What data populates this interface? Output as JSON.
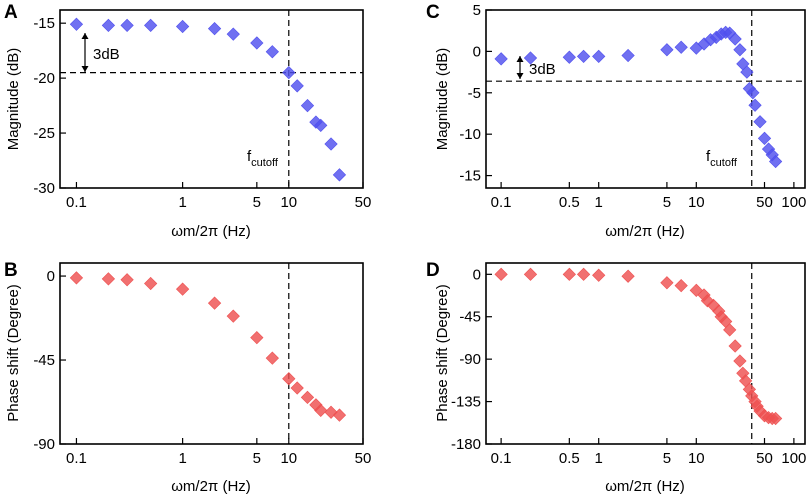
{
  "chart_data": [
    {
      "panel": "A",
      "type": "scatter",
      "xscale": "log",
      "xlim": [
        0.07,
        50
      ],
      "ylim": [
        -30,
        -13.8
      ],
      "xticks": [
        0.1,
        1,
        5,
        10,
        50
      ],
      "xtick_labels": [
        "0.1",
        "1",
        "5",
        "10",
        "50"
      ],
      "yticks": [
        -15,
        -20,
        -25,
        -30
      ],
      "ytick_labels": [
        "-15",
        "-20",
        "-25",
        "-30"
      ],
      "xlabel": "ωm/2π (Hz)",
      "ylabel": "Magnitude  (dB)",
      "color": "#5050ee",
      "x": [
        0.1,
        0.2,
        0.3,
        0.5,
        1,
        2,
        3,
        5,
        7,
        10,
        12,
        15,
        18,
        20,
        25,
        30
      ],
      "y": [
        -15.1,
        -15.2,
        -15.2,
        -15.2,
        -15.3,
        -15.5,
        -16.0,
        -16.8,
        -17.6,
        -19.5,
        -20.7,
        -22.5,
        -24.0,
        -24.3,
        -26.0,
        -28.8
      ],
      "hline": -19.5,
      "vline": 10,
      "annotations": {
        "drop": "3dB",
        "cutoff_main": "f",
        "cutoff_sub": "cutoff"
      }
    },
    {
      "panel": "B",
      "type": "scatter",
      "xscale": "log",
      "xlim": [
        0.07,
        50
      ],
      "ylim": [
        -90,
        7
      ],
      "xticks": [
        0.1,
        1,
        5,
        10,
        50
      ],
      "xtick_labels": [
        "0.1",
        "1",
        "5",
        "10",
        "50"
      ],
      "yticks": [
        0,
        -45,
        -90
      ],
      "ytick_labels": [
        "0",
        "-45",
        "-90"
      ],
      "xlabel": "ωm/2π (Hz)",
      "ylabel": "Phase shift  (Degree)",
      "color": "#ee5050",
      "x": [
        0.1,
        0.2,
        0.3,
        0.5,
        1,
        2,
        3,
        5,
        7,
        10,
        12,
        15,
        18,
        20,
        25,
        30
      ],
      "y": [
        -1,
        -1.5,
        -2,
        -4,
        -7,
        -14.5,
        -21.5,
        -33,
        -44,
        -55,
        -60,
        -65,
        -69,
        -72,
        -73,
        -74.5
      ],
      "vline": 10
    },
    {
      "panel": "C",
      "type": "scatter",
      "xscale": "log",
      "xlim": [
        0.07,
        130
      ],
      "ylim": [
        -16.5,
        5
      ],
      "xticks": [
        0.1,
        0.5,
        1,
        5,
        10,
        50,
        100
      ],
      "xtick_labels": [
        "0.1",
        "0.5",
        "1",
        "5",
        "10",
        "50",
        "100"
      ],
      "yticks": [
        5,
        0,
        -5,
        -10,
        -15
      ],
      "ytick_labels": [
        "5",
        "0",
        "-5",
        "-10",
        "-15"
      ],
      "xlabel": "ωm/2π (Hz)",
      "ylabel": "Magnitude  (dB)",
      "color": "#5050ee",
      "x": [
        0.1,
        0.2,
        0.5,
        0.7,
        1,
        2,
        5,
        7,
        10,
        12,
        14,
        16,
        18,
        20,
        22,
        25,
        28,
        30,
        33,
        35,
        38,
        40,
        45,
        50,
        55,
        60,
        65
      ],
      "y": [
        -0.9,
        -0.8,
        -0.7,
        -0.6,
        -0.6,
        -0.5,
        0.2,
        0.5,
        0.4,
        0.9,
        1.4,
        1.7,
        2.1,
        2.3,
        2.2,
        1.5,
        0.2,
        -1.5,
        -2.5,
        -4.5,
        -5.0,
        -6.5,
        -8.5,
        -10.5,
        -11.8,
        -12.5,
        -13.3
      ],
      "hline": -3.6,
      "vline": 37,
      "annotations": {
        "drop": "3dB",
        "cutoff_main": "f",
        "cutoff_sub": "cutoff"
      }
    },
    {
      "panel": "D",
      "type": "scatter",
      "xscale": "log",
      "xlim": [
        0.07,
        130
      ],
      "ylim": [
        -180,
        12
      ],
      "xticks": [
        0.1,
        0.5,
        1,
        5,
        10,
        50,
        100
      ],
      "xtick_labels": [
        "0.1",
        "0.5",
        "1",
        "5",
        "10",
        "50",
        "100"
      ],
      "yticks": [
        0,
        -45,
        -90,
        -135,
        -180
      ],
      "ytick_labels": [
        "0",
        "-45",
        "-90",
        "-135",
        "-180"
      ],
      "xlabel": "ωm/2π (Hz)",
      "ylabel": "Phase shift  (Degree)",
      "color": "#ee5050",
      "x": [
        0.1,
        0.2,
        0.5,
        0.7,
        1,
        2,
        5,
        7,
        10,
        12,
        13,
        15,
        17,
        18,
        20,
        22,
        25,
        28,
        30,
        32,
        35,
        37,
        40,
        42,
        45,
        50,
        55,
        60,
        65
      ],
      "y": [
        0,
        0,
        0,
        0,
        -1,
        -2,
        -9,
        -12,
        -17,
        -22,
        -28,
        -33,
        -39,
        -45,
        -50,
        -59,
        -76,
        -92,
        -105,
        -113,
        -122,
        -129,
        -135,
        -140,
        -145,
        -150,
        -152,
        -153,
        -153
      ],
      "vline": 37
    }
  ]
}
